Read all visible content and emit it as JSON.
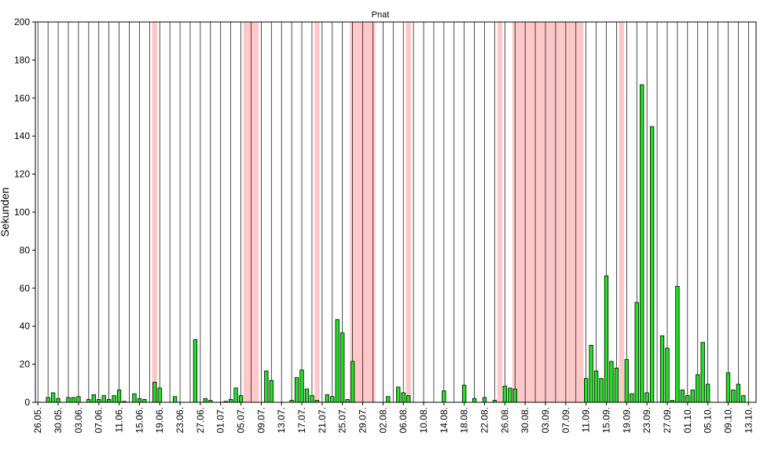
{
  "chart_data": {
    "type": "bar",
    "title": "Pnat",
    "ylabel": "Sekunden",
    "xlabel": "",
    "ylim": [
      0,
      200
    ],
    "yticks": [
      0,
      20,
      40,
      60,
      80,
      100,
      120,
      140,
      160,
      180,
      200
    ],
    "grid": "vertical lines every 2 days, solid at labelled dates",
    "legend": "none",
    "colors": {
      "bar_fill": "#22e022",
      "bar_stroke": "#000000",
      "shade": "#ffc8c8",
      "grid": "#000000"
    },
    "days": [
      "26.05.",
      "27.05.",
      "28.05.",
      "29.05.",
      "30.05.",
      "31.05.",
      "01.06.",
      "02.06.",
      "03.06.",
      "04.06.",
      "05.06.",
      "06.06.",
      "07.06.",
      "08.06.",
      "09.06.",
      "10.06.",
      "11.06.",
      "12.06.",
      "13.06.",
      "14.06.",
      "15.06.",
      "16.06.",
      "17.06.",
      "18.06.",
      "19.06.",
      "20.06.",
      "21.06.",
      "22.06.",
      "23.06.",
      "24.06.",
      "25.06.",
      "26.06.",
      "27.06.",
      "28.06.",
      "29.06.",
      "30.06.",
      "01.07.",
      "02.07.",
      "03.07.",
      "04.07.",
      "05.07.",
      "06.07.",
      "07.07.",
      "08.07.",
      "09.07.",
      "10.07.",
      "11.07.",
      "12.07.",
      "13.07.",
      "14.07.",
      "15.07.",
      "16.07.",
      "17.07.",
      "18.07.",
      "19.07.",
      "20.07.",
      "21.07.",
      "22.07.",
      "23.07.",
      "24.07.",
      "25.07.",
      "26.07.",
      "27.07.",
      "28.07.",
      "29.07.",
      "30.07.",
      "31.07.",
      "01.08.",
      "02.08.",
      "03.08.",
      "04.08.",
      "05.08.",
      "06.08.",
      "07.08.",
      "08.08.",
      "09.08.",
      "10.08.",
      "11.08.",
      "12.08.",
      "13.08.",
      "14.08.",
      "15.08.",
      "16.08.",
      "17.08.",
      "18.08.",
      "19.08.",
      "20.08.",
      "21.08.",
      "22.08.",
      "23.08.",
      "24.08.",
      "25.08.",
      "26.08.",
      "27.08.",
      "28.08.",
      "29.08.",
      "30.08.",
      "31.08.",
      "01.09.",
      "02.09.",
      "03.09.",
      "04.09.",
      "05.09.",
      "06.09.",
      "07.09.",
      "08.09.",
      "09.09.",
      "10.09.",
      "11.09.",
      "12.09.",
      "13.09.",
      "14.09.",
      "15.09.",
      "16.09.",
      "17.09.",
      "18.09.",
      "19.09.",
      "20.09.",
      "21.09.",
      "22.09.",
      "23.09.",
      "24.09.",
      "25.09.",
      "26.09.",
      "27.09.",
      "28.09.",
      "29.09.",
      "30.09.",
      "01.10.",
      "02.10.",
      "03.10.",
      "04.10.",
      "05.10.",
      "06.10.",
      "07.10.",
      "08.10.",
      "09.10.",
      "10.10.",
      "11.10.",
      "12.10.",
      "13.10.",
      "14.10."
    ],
    "x_tick_labels": [
      "26.05.",
      "30.05.",
      "03.06.",
      "07.06.",
      "11.06.",
      "15.06.",
      "19.06.",
      "23.06.",
      "27.06.",
      "01.07.",
      "05.07.",
      "09.07.",
      "13.07.",
      "17.07.",
      "21.07.",
      "25.07.",
      "29.07.",
      "02.08.",
      "06.08.",
      "10.08.",
      "14.08.",
      "18.08.",
      "22.08.",
      "26.08.",
      "30.08.",
      "03.09.",
      "07.09.",
      "11.09.",
      "15.09.",
      "19.09.",
      "23.09.",
      "27.09.",
      "01.10.",
      "05.10.",
      "09.10.",
      "13.10."
    ],
    "shaded_ranges": [
      {
        "from": "18.06.",
        "to": "18.06."
      },
      {
        "from": "06.07.",
        "to": "08.07."
      },
      {
        "from": "20.07.",
        "to": "20.07."
      },
      {
        "from": "27.07.",
        "to": "31.07."
      },
      {
        "from": "07.08.",
        "to": "07.08."
      },
      {
        "from": "25.08.",
        "to": "25.08."
      },
      {
        "from": "28.08.",
        "to": "10.09."
      },
      {
        "from": "18.09.",
        "to": "18.09."
      }
    ],
    "bars": [
      {
        "x": "28.05.",
        "y": 2.5
      },
      {
        "x": "29.05.",
        "y": 5
      },
      {
        "x": "30.05.",
        "y": 2
      },
      {
        "x": "01.06.",
        "y": 2.5
      },
      {
        "x": "02.06.",
        "y": 2.5
      },
      {
        "x": "03.06.",
        "y": 3
      },
      {
        "x": "05.06.",
        "y": 1.5
      },
      {
        "x": "06.06.",
        "y": 4
      },
      {
        "x": "07.06.",
        "y": 1.5
      },
      {
        "x": "08.06.",
        "y": 3.5
      },
      {
        "x": "09.06.",
        "y": 1.5
      },
      {
        "x": "10.06.",
        "y": 3.5
      },
      {
        "x": "11.06.",
        "y": 6.5
      },
      {
        "x": "12.06.",
        "y": 0.5
      },
      {
        "x": "14.06.",
        "y": 4.5
      },
      {
        "x": "15.06.",
        "y": 2
      },
      {
        "x": "16.06.",
        "y": 1.5
      },
      {
        "x": "18.06.",
        "y": 10.5
      },
      {
        "x": "19.06.",
        "y": 7.5
      },
      {
        "x": "22.06.",
        "y": 3
      },
      {
        "x": "26.06.",
        "y": 33
      },
      {
        "x": "28.06.",
        "y": 2
      },
      {
        "x": "29.06.",
        "y": 1
      },
      {
        "x": "02.07.",
        "y": 0.5
      },
      {
        "x": "03.07.",
        "y": 1.5
      },
      {
        "x": "04.07.",
        "y": 7.5
      },
      {
        "x": "05.07.",
        "y": 3.5
      },
      {
        "x": "10.07.",
        "y": 16.5
      },
      {
        "x": "11.07.",
        "y": 11.5
      },
      {
        "x": "15.07.",
        "y": 1
      },
      {
        "x": "16.07.",
        "y": 13
      },
      {
        "x": "17.07.",
        "y": 17
      },
      {
        "x": "18.07.",
        "y": 7
      },
      {
        "x": "19.07.",
        "y": 3.5
      },
      {
        "x": "20.07.",
        "y": 1
      },
      {
        "x": "22.07.",
        "y": 4
      },
      {
        "x": "23.07.",
        "y": 3
      },
      {
        "x": "24.07.",
        "y": 43.5
      },
      {
        "x": "25.07.",
        "y": 36.5
      },
      {
        "x": "26.07.",
        "y": 1.5
      },
      {
        "x": "27.07.",
        "y": 21.5
      },
      {
        "x": "03.08.",
        "y": 3
      },
      {
        "x": "05.08.",
        "y": 8
      },
      {
        "x": "06.08.",
        "y": 5
      },
      {
        "x": "07.08.",
        "y": 3.5
      },
      {
        "x": "14.08.",
        "y": 6
      },
      {
        "x": "18.08.",
        "y": 9
      },
      {
        "x": "20.08.",
        "y": 2
      },
      {
        "x": "22.08.",
        "y": 2.5
      },
      {
        "x": "24.08.",
        "y": 1
      },
      {
        "x": "26.08.",
        "y": 8.5
      },
      {
        "x": "27.08.",
        "y": 7.5
      },
      {
        "x": "28.08.",
        "y": 7
      },
      {
        "x": "11.09.",
        "y": 12.5
      },
      {
        "x": "12.09.",
        "y": 30
      },
      {
        "x": "13.09.",
        "y": 16.5
      },
      {
        "x": "14.09.",
        "y": 12.5
      },
      {
        "x": "15.09.",
        "y": 66.5
      },
      {
        "x": "16.09.",
        "y": 21.5
      },
      {
        "x": "17.09.",
        "y": 18
      },
      {
        "x": "19.09.",
        "y": 22.5
      },
      {
        "x": "20.09.",
        "y": 4.5
      },
      {
        "x": "21.09.",
        "y": 52.5
      },
      {
        "x": "22.09.",
        "y": 167
      },
      {
        "x": "23.09.",
        "y": 5
      },
      {
        "x": "24.09.",
        "y": 145
      },
      {
        "x": "26.09.",
        "y": 35
      },
      {
        "x": "27.09.",
        "y": 28.5
      },
      {
        "x": "28.09.",
        "y": 1
      },
      {
        "x": "29.09.",
        "y": 61
      },
      {
        "x": "30.09.",
        "y": 6.5
      },
      {
        "x": "01.10.",
        "y": 3.5
      },
      {
        "x": "02.10.",
        "y": 6.5
      },
      {
        "x": "03.10.",
        "y": 14.5
      },
      {
        "x": "04.10.",
        "y": 31.5
      },
      {
        "x": "05.10.",
        "y": 9.5
      },
      {
        "x": "09.10.",
        "y": 15.5
      },
      {
        "x": "10.10.",
        "y": 6.5
      },
      {
        "x": "11.10.",
        "y": 9.5
      },
      {
        "x": "12.10.",
        "y": 3.5
      }
    ]
  }
}
